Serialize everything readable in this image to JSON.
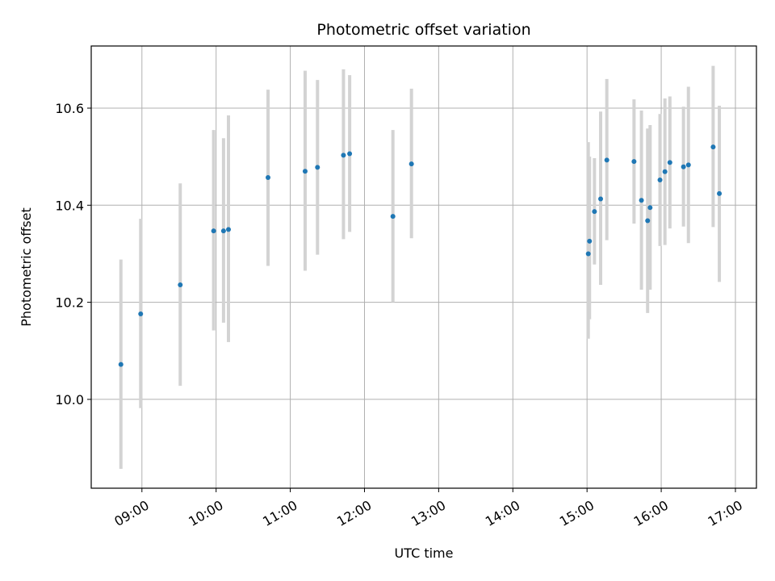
{
  "chart_data": {
    "type": "scatter",
    "title": "Photometric offset variation",
    "xlabel": "UTC time",
    "ylabel": "Photometric offset",
    "x_axis_type": "time",
    "xlim": [
      "08:19",
      "17:17"
    ],
    "ylim": [
      9.817,
      10.728
    ],
    "grid": true,
    "x_ticks": [
      "09:00",
      "10:00",
      "11:00",
      "12:00",
      "13:00",
      "14:00",
      "15:00",
      "16:00",
      "17:00"
    ],
    "y_ticks": [
      10.0,
      10.2,
      10.4,
      10.6
    ],
    "y_tick_labels": [
      "10.0",
      "10.2",
      "10.4",
      "10.6"
    ],
    "marker_color": "#1f77b4",
    "errorbar_color": "#d3d3d3",
    "grid_color": "#b0b0b0",
    "series": [
      {
        "points": [
          {
            "x": "08:43",
            "y": 10.072,
            "lo": 9.857,
            "hi": 10.288
          },
          {
            "x": "08:59",
            "y": 10.176,
            "lo": 9.982,
            "hi": 10.372
          },
          {
            "x": "09:31",
            "y": 10.236,
            "lo": 10.028,
            "hi": 10.445
          },
          {
            "x": "09:58",
            "y": 10.347,
            "lo": 10.142,
            "hi": 10.555
          },
          {
            "x": "10:06",
            "y": 10.347,
            "lo": 10.158,
            "hi": 10.538
          },
          {
            "x": "10:10",
            "y": 10.35,
            "lo": 10.118,
            "hi": 10.585
          },
          {
            "x": "10:42",
            "y": 10.457,
            "lo": 10.275,
            "hi": 10.638
          },
          {
            "x": "11:12",
            "y": 10.47,
            "lo": 10.265,
            "hi": 10.677
          },
          {
            "x": "11:22",
            "y": 10.478,
            "lo": 10.298,
            "hi": 10.658
          },
          {
            "x": "11:43",
            "y": 10.503,
            "lo": 10.33,
            "hi": 10.68
          },
          {
            "x": "11:48",
            "y": 10.506,
            "lo": 10.345,
            "hi": 10.668
          },
          {
            "x": "12:23",
            "y": 10.377,
            "lo": 10.2,
            "hi": 10.555
          },
          {
            "x": "12:38",
            "y": 10.485,
            "lo": 10.332,
            "hi": 10.64
          },
          {
            "x": "15:01",
            "y": 10.3,
            "lo": 10.125,
            "hi": 10.53
          },
          {
            "x": "15:02",
            "y": 10.326,
            "lo": 10.165,
            "hi": 10.5
          },
          {
            "x": "15:06",
            "y": 10.387,
            "lo": 10.278,
            "hi": 10.497
          },
          {
            "x": "15:11",
            "y": 10.413,
            "lo": 10.236,
            "hi": 10.593
          },
          {
            "x": "15:16",
            "y": 10.493,
            "lo": 10.328,
            "hi": 10.66
          },
          {
            "x": "15:38",
            "y": 10.49,
            "lo": 10.362,
            "hi": 10.618
          },
          {
            "x": "15:44",
            "y": 10.41,
            "lo": 10.226,
            "hi": 10.595
          },
          {
            "x": "15:49",
            "y": 10.368,
            "lo": 10.178,
            "hi": 10.558
          },
          {
            "x": "15:51",
            "y": 10.395,
            "lo": 10.226,
            "hi": 10.565
          },
          {
            "x": "15:59",
            "y": 10.452,
            "lo": 10.316,
            "hi": 10.588
          },
          {
            "x": "16:03",
            "y": 10.469,
            "lo": 10.318,
            "hi": 10.62
          },
          {
            "x": "16:07",
            "y": 10.488,
            "lo": 10.352,
            "hi": 10.624
          },
          {
            "x": "16:18",
            "y": 10.479,
            "lo": 10.356,
            "hi": 10.603
          },
          {
            "x": "16:22",
            "y": 10.483,
            "lo": 10.322,
            "hi": 10.644
          },
          {
            "x": "16:42",
            "y": 10.52,
            "lo": 10.355,
            "hi": 10.687
          },
          {
            "x": "16:47",
            "y": 10.424,
            "lo": 10.242,
            "hi": 10.605
          }
        ]
      }
    ]
  }
}
